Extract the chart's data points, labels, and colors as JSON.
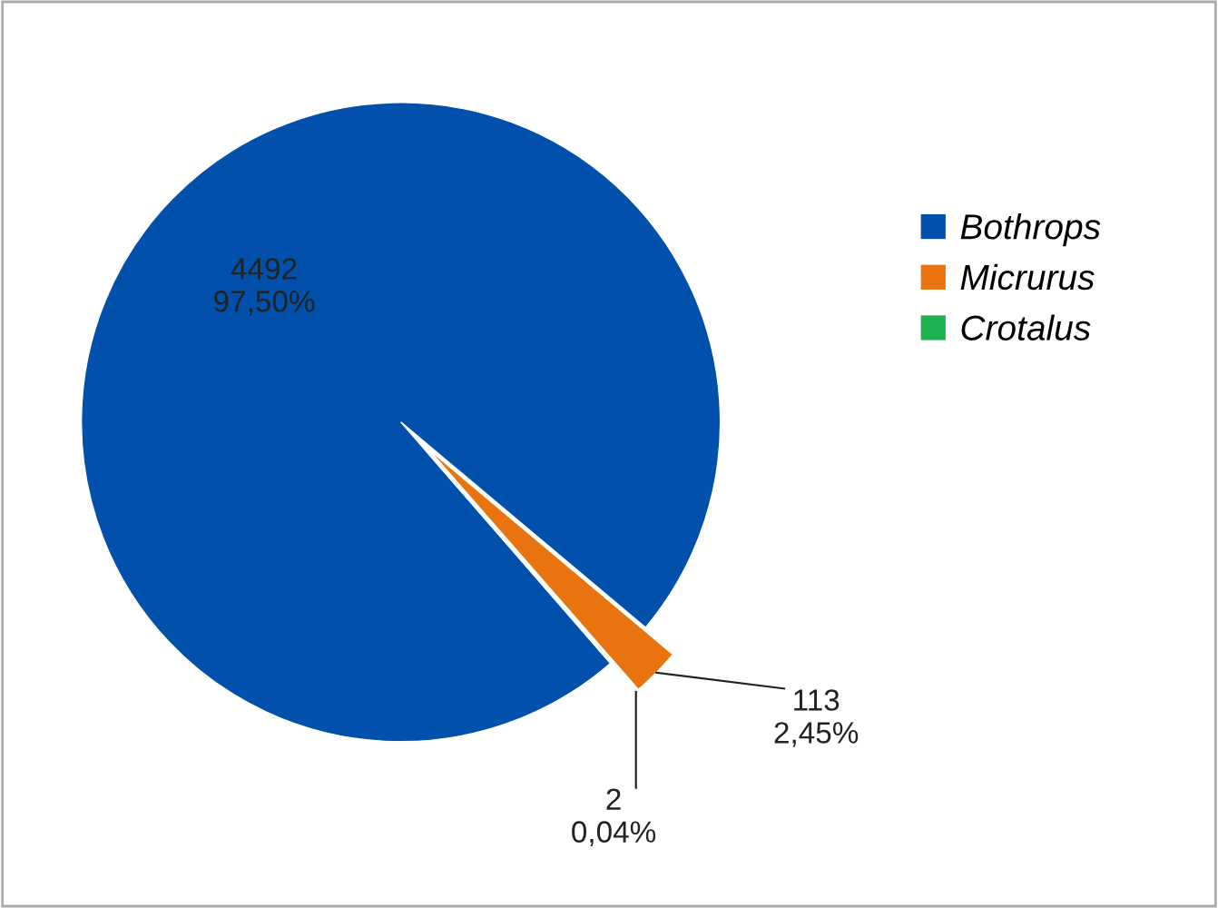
{
  "chart_data": {
    "type": "pie",
    "categories": [
      "Bothrops",
      "Micrurus",
      "Crotalus"
    ],
    "values": [
      4492,
      113,
      2
    ],
    "colors": [
      "#0050ac",
      "#e8730f",
      "#1fb050"
    ],
    "value_labels": [
      "4492\n97,50%",
      "113\n2,45%",
      "2\n0,04%"
    ],
    "legend": "right"
  }
}
